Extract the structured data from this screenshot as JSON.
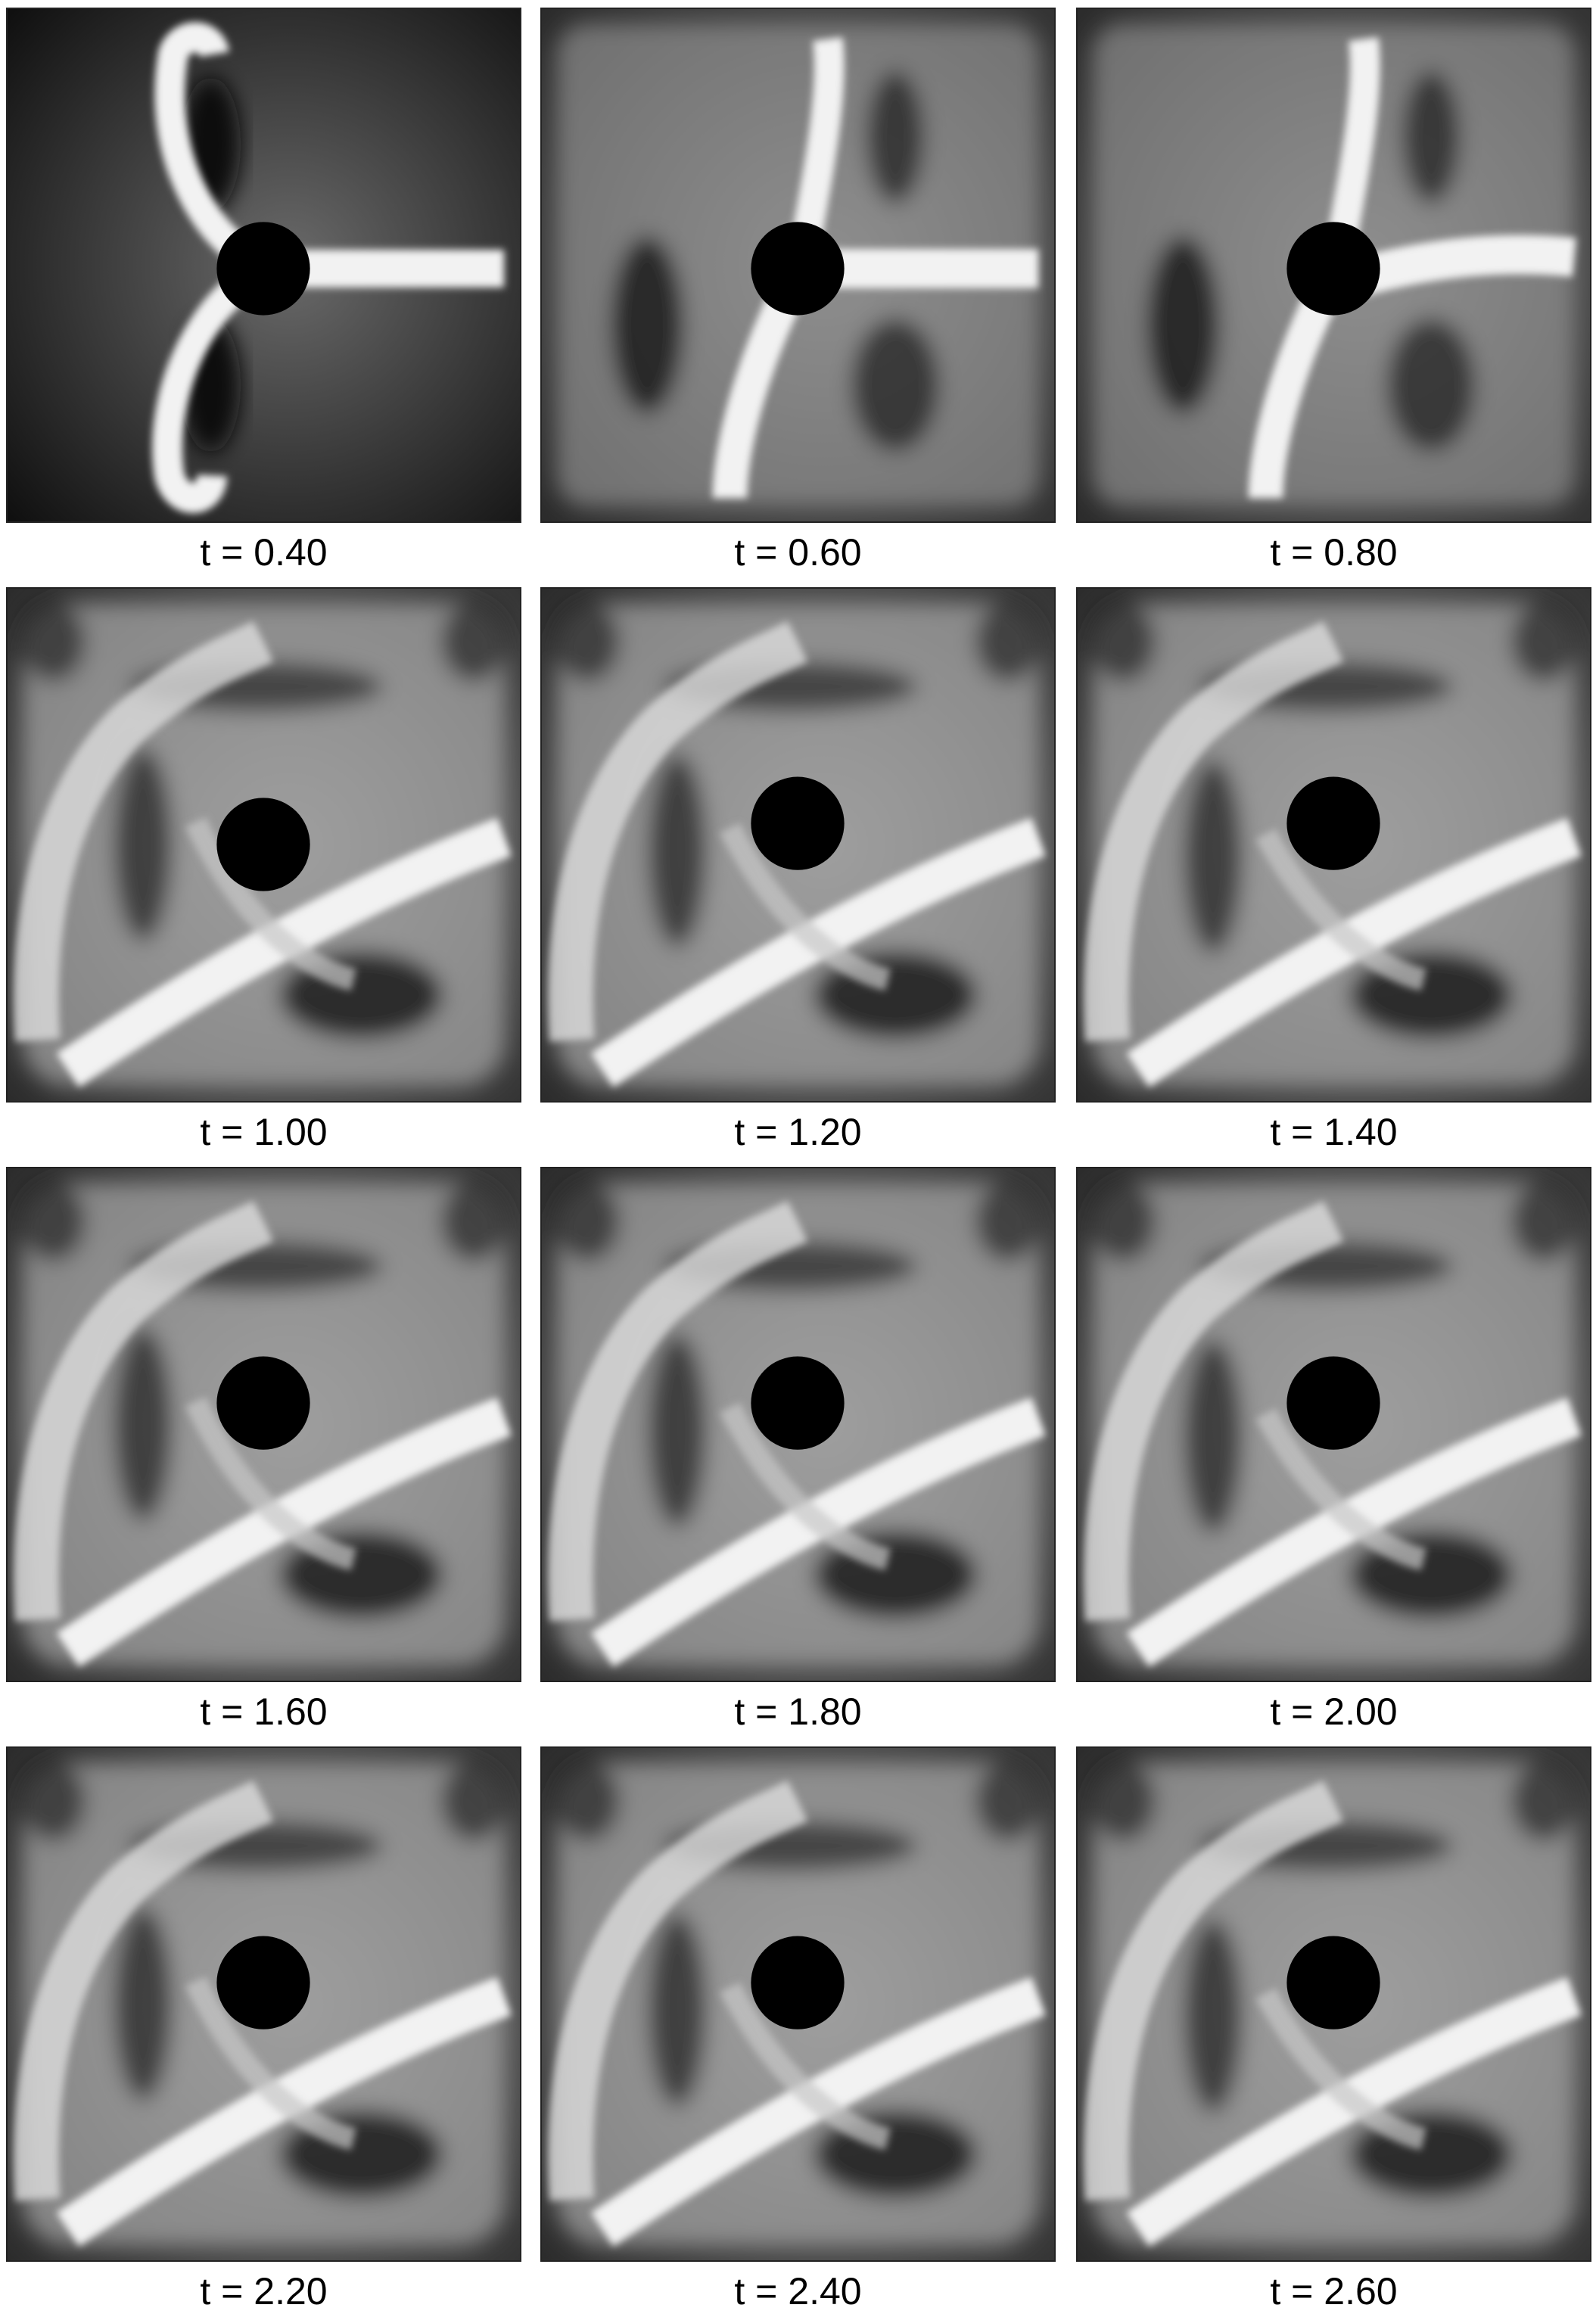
{
  "panels": [
    {
      "label": "t = 0.40",
      "stage": 0
    },
    {
      "label": "t = 0.60",
      "stage": 1
    },
    {
      "label": "t = 0.80",
      "stage": 2
    },
    {
      "label": "t = 1.00",
      "stage": 3
    },
    {
      "label": "t = 1.20",
      "stage": 4
    },
    {
      "label": "t = 1.40",
      "stage": 5
    },
    {
      "label": "t = 1.60",
      "stage": 6
    },
    {
      "label": "t = 1.80",
      "stage": 7
    },
    {
      "label": "t = 2.00",
      "stage": 8
    },
    {
      "label": "t = 2.20",
      "stage": 9
    },
    {
      "label": "t = 2.40",
      "stage": 10
    },
    {
      "label": "t = 2.60",
      "stage": 11
    }
  ],
  "colors": {
    "background": "#ffffff",
    "field_dark": "#0a0a0a",
    "field_light": "#f2f2f2",
    "obstacle": "#000000"
  }
}
